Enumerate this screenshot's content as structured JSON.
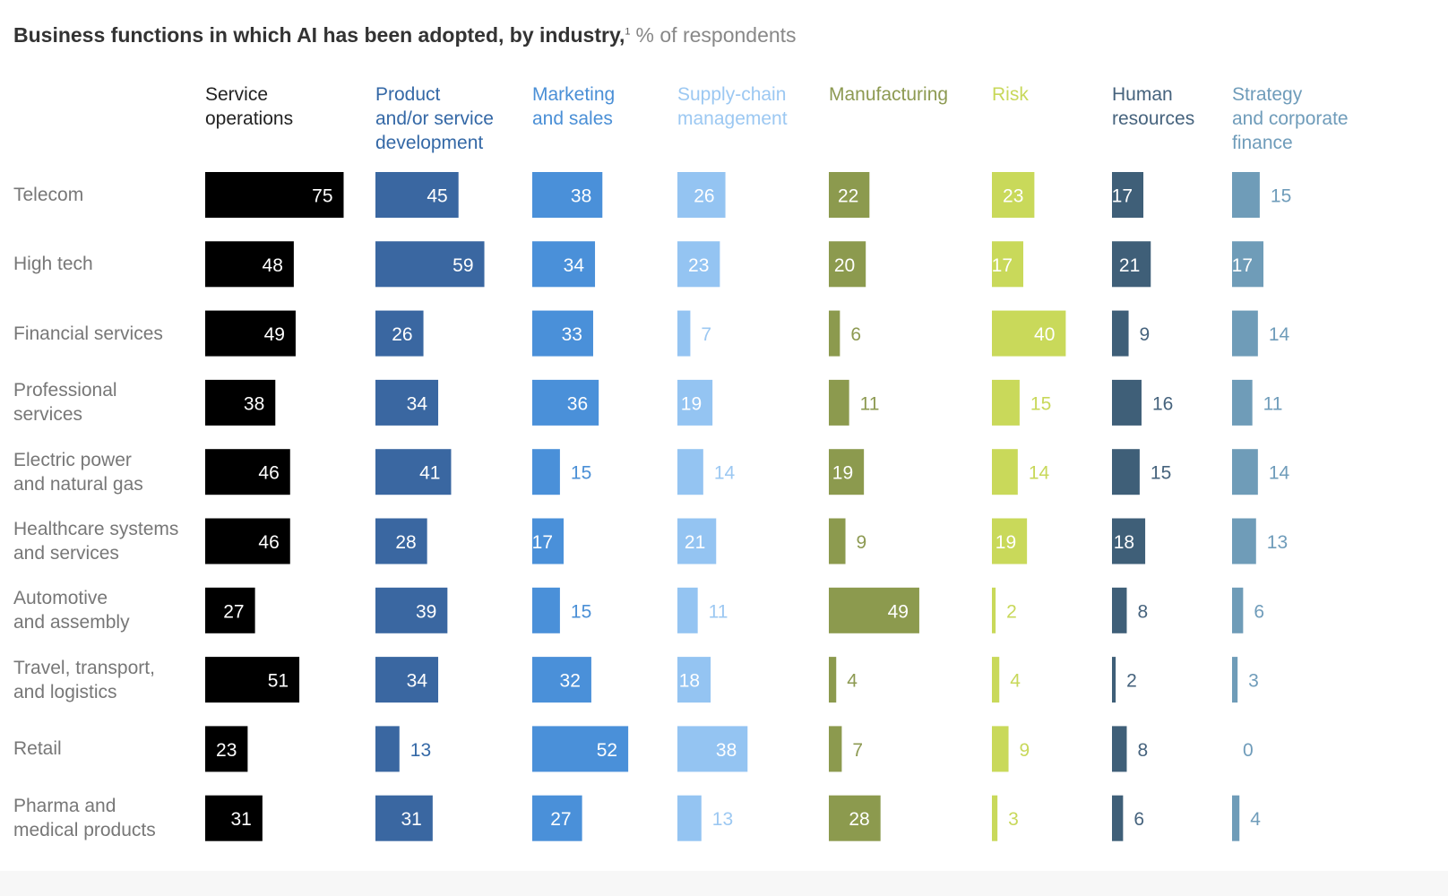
{
  "chart_data": {
    "type": "bar",
    "title": "Business functions in which AI has been adopted, by industry,",
    "title_footnote": "1",
    "subtitle": "% of respondents",
    "categories": [
      [
        "Telecom"
      ],
      [
        "High tech"
      ],
      [
        "Financial services"
      ],
      [
        "Professional",
        "services"
      ],
      [
        "Electric power",
        "and natural gas"
      ],
      [
        "Healthcare systems",
        "and services"
      ],
      [
        "Automotive",
        "and assembly"
      ],
      [
        "Travel, transport,",
        "and logistics"
      ],
      [
        "Retail"
      ],
      [
        "Pharma and",
        "medical products"
      ]
    ],
    "series": [
      {
        "name": [
          "Service",
          "operations"
        ],
        "color": "#000000",
        "label_color": "#222222",
        "values": [
          75,
          48,
          49,
          38,
          46,
          46,
          27,
          51,
          23,
          31
        ]
      },
      {
        "name": [
          "Product",
          "and/or service",
          "development"
        ],
        "color": "#3a67a1",
        "label_color": "#3468a6",
        "values": [
          45,
          59,
          26,
          34,
          41,
          28,
          39,
          34,
          13,
          31
        ]
      },
      {
        "name": [
          "Marketing",
          "and sales"
        ],
        "color": "#4a90d9",
        "label_color": "#4a8fd6",
        "values": [
          38,
          34,
          33,
          36,
          15,
          17,
          15,
          32,
          52,
          27
        ]
      },
      {
        "name": [
          "Supply-chain",
          "management"
        ],
        "color": "#94c4f2",
        "label_color": "#9cc8f2",
        "values": [
          26,
          23,
          7,
          19,
          14,
          21,
          11,
          18,
          38,
          13
        ]
      },
      {
        "name": [
          "Manufacturing"
        ],
        "color": "#8c9a4e",
        "label_color": "#8d9a52",
        "values": [
          22,
          20,
          6,
          11,
          19,
          9,
          49,
          4,
          7,
          28
        ]
      },
      {
        "name": [
          "Risk"
        ],
        "color": "#c9d95a",
        "label_color": "#c8d85a",
        "values": [
          23,
          17,
          40,
          15,
          14,
          19,
          2,
          4,
          9,
          3
        ]
      },
      {
        "name": [
          "Human",
          "resources"
        ],
        "color": "#3f5f78",
        "label_color": "#46637d",
        "values": [
          17,
          21,
          9,
          16,
          15,
          18,
          8,
          2,
          8,
          6
        ]
      },
      {
        "name": [
          "Strategy",
          "and corporate",
          "finance"
        ],
        "color": "#6f9cb8",
        "label_color": "#6f9cba",
        "values": [
          15,
          17,
          14,
          11,
          14,
          13,
          6,
          3,
          0,
          4
        ]
      }
    ]
  }
}
